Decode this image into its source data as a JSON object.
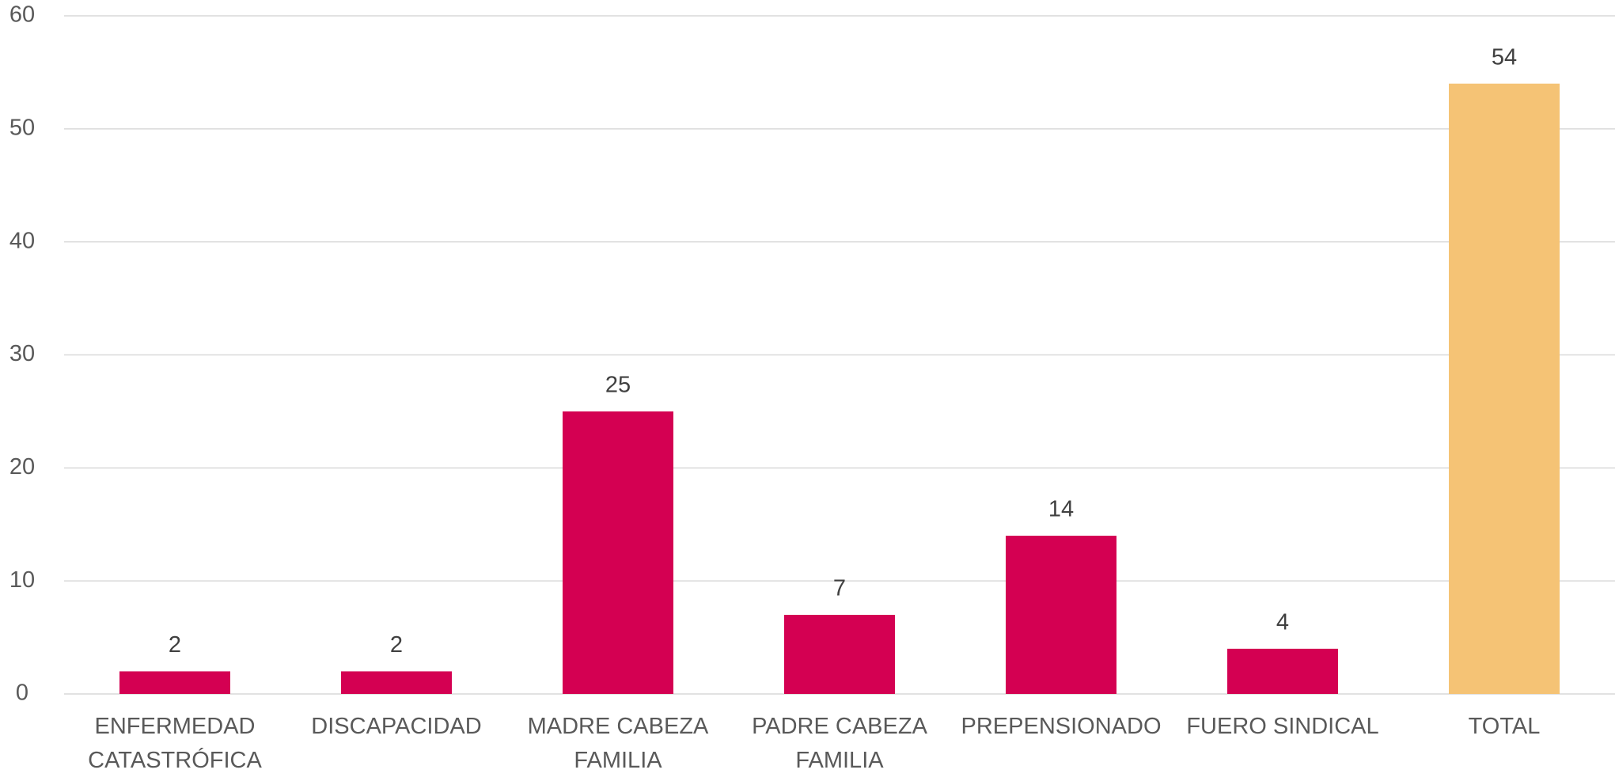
{
  "chart_data": {
    "type": "bar",
    "categories": [
      "ENFERMEDAD CATASTRÓFICA",
      "DISCAPACIDAD",
      "MADRE CABEZA FAMILIA",
      "PADRE CABEZA FAMILIA",
      "PREPENSIONADO",
      "FUERO SINDICAL",
      "TOTAL"
    ],
    "values": [
      2,
      2,
      25,
      7,
      14,
      4,
      54
    ],
    "colors": [
      "#d40052",
      "#d40052",
      "#d40052",
      "#d40052",
      "#d40052",
      "#d40052",
      "#f5c375"
    ],
    "ylim": [
      0,
      60
    ],
    "yticks": [
      0,
      10,
      20,
      30,
      40,
      50,
      60
    ],
    "grid": true,
    "data_labels": true
  }
}
